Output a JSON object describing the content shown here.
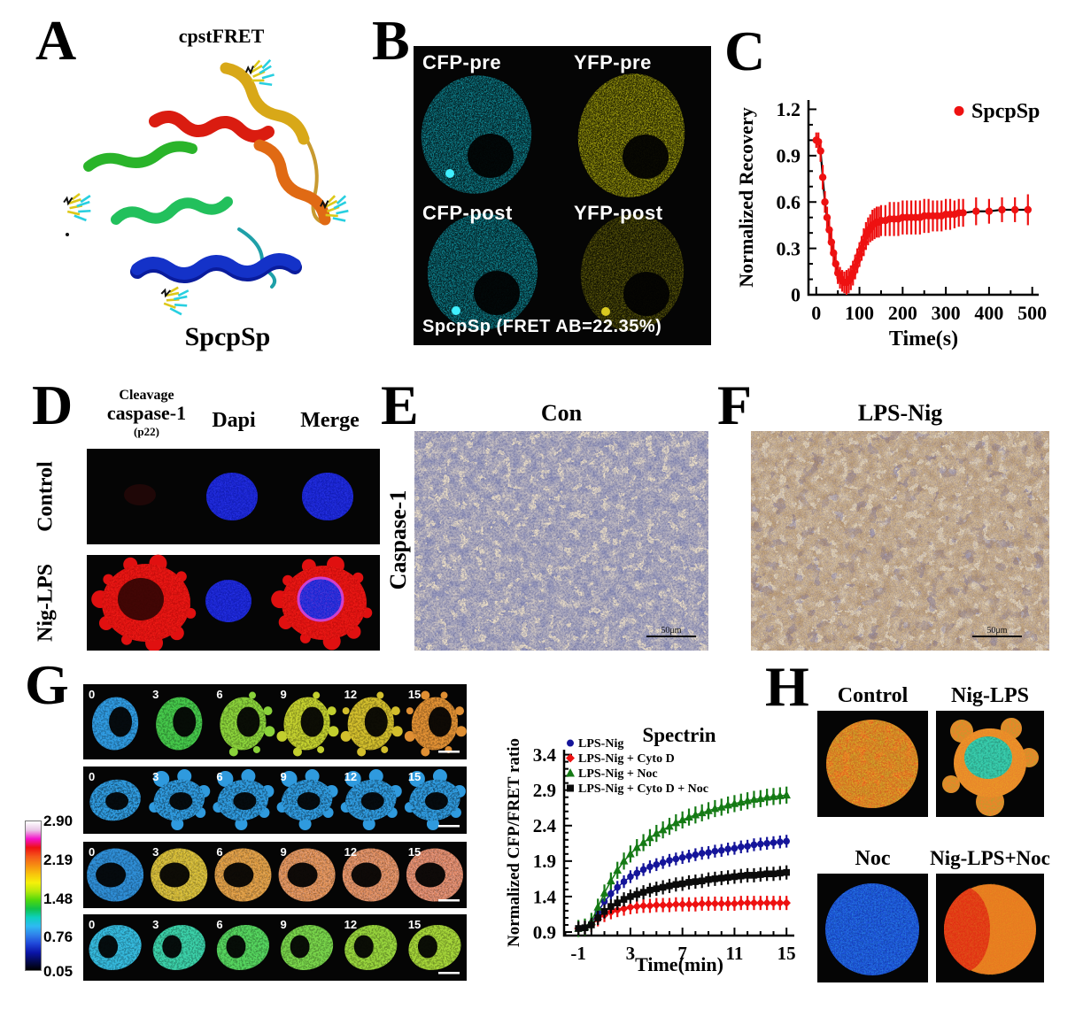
{
  "figure": {
    "panels": {
      "A": {
        "letter": "A",
        "label_top": "cpstFRET",
        "label_bottom": "SpcpSp"
      },
      "B": {
        "letter": "B",
        "quadrant_labels": [
          "CFP-pre",
          "YFP-pre",
          "CFP-post",
          "YFP-post"
        ],
        "caption": "SpcpSp (FRET AB=22.35%)",
        "colors": {
          "background": "#050505",
          "cfp_base": "#063238",
          "cfp_speck": "#17c9da",
          "yfp_base": "#3a3a04",
          "yfp_speck": "#e8e414",
          "yfp_dim_base": "#1d1d03",
          "yfp_dim_speck": "#8a8410"
        }
      },
      "C": {
        "letter": "C"
      },
      "D": {
        "letter": "D",
        "column_headers": {
          "line1": "Cleavage",
          "line2": "caspase-1",
          "line3": "(p22)",
          "col2": "Dapi",
          "col3": "Merge"
        },
        "row_labels": [
          "Control",
          "Nig-LPS"
        ],
        "colors": {
          "caspase_red": "#e01010",
          "caspase_speck": "#ff3020",
          "dapi_blue": "#1822cf",
          "dapi_speck": "#4050ff",
          "merge_ring": "#cf3fcf",
          "background": "#050505"
        }
      },
      "E": {
        "letter": "E",
        "title": "Con",
        "side_label": "Caspase-1",
        "scale_label": "50μm",
        "colors": {
          "base": "#ecdfc9",
          "cells": "#8086bb",
          "nuclei": "#585f9d"
        }
      },
      "F": {
        "letter": "F",
        "title": "LPS-Nig",
        "scale_label": "50μm",
        "colors": {
          "base": "#e5d4b8",
          "cells": "#8a84ae",
          "stain": "#a57b4e"
        }
      },
      "G": {
        "letter": "G",
        "frame_times": [
          "0",
          "3",
          "6",
          "9",
          "12",
          "15"
        ],
        "rows": [
          {
            "name": "LPS-Nig",
            "frame_colors": [
              "#2f9ae0",
              "#45c84a",
              "#8ad23a",
              "#c2cf2e",
              "#d2be2c",
              "#df8f33"
            ],
            "blebs_from": 2,
            "nucleus": "patchy"
          },
          {
            "name": "LPS-Nig + Cyto D",
            "frame_colors": [
              "#2f9ade",
              "#2f9ade",
              "#2f9ade",
              "#2f9ade",
              "#2f9ade",
              "#2f9ade"
            ],
            "blebs_from": 1,
            "nucleus": "patchy"
          },
          {
            "name": "LPS-Nig + Noc",
            "frame_colors": [
              "#2f8fd8",
              "#d6bb2e",
              "#e09a3c",
              "#e08d4c",
              "#df8955",
              "#df8560"
            ],
            "blebs_from": 99,
            "nucleus": "large"
          },
          {
            "name": "LPS-Nig + Cyto D + Noc",
            "frame_colors": [
              "#35b9dc",
              "#3bd0a8",
              "#55d45e",
              "#78d44a",
              "#97d43c",
              "#a4d438"
            ],
            "blebs_from": 99,
            "nucleus": "crescent"
          }
        ],
        "colorbar": {
          "labels": [
            "2.90",
            "2.19",
            "1.48",
            "0.76",
            "0.05"
          ],
          "stops": [
            "#ffffff",
            "#e9c6e6",
            "#f413c9",
            "#ee1111",
            "#f4581a",
            "#f68c12",
            "#f8c20c",
            "#f6f00a",
            "#b5e90b",
            "#4fd80d",
            "#10c24a",
            "#0ecfc0",
            "#2fb9f2",
            "#2f80ea",
            "#1f46d8",
            "#0a14a8",
            "#040a52",
            "#000000"
          ]
        }
      },
      "H": {
        "letter": "H",
        "labels": [
          "Control",
          "Nig-LPS",
          "Noc",
          "Nig-LPS+Noc"
        ],
        "colors": {
          "control_base": "#e07b28",
          "control_speck": "#f0d020",
          "control_speck2": "#e02810",
          "niglps_rim": "#e8862a",
          "niglps_center": "#3cc8a8",
          "noc_base": "#1c50d8",
          "noc_speck": "#30a0e8",
          "nignoc_base": "#e87820",
          "nignoc_crescent": "#dd2a10",
          "nignoc_fringe": "#9cc82c",
          "background": "#050505"
        }
      }
    }
  },
  "chart_data": [
    {
      "panel": "C",
      "type": "scatter-line",
      "title": "",
      "xlabel": "Time(s)",
      "ylabel": "Normalized Recovery",
      "xlim": [
        -18,
        515
      ],
      "ylim": [
        0,
        1.26
      ],
      "xticks": [
        0,
        100,
        200,
        300,
        400,
        500
      ],
      "xtick_labels": [
        "0",
        "100",
        "200",
        "300",
        "400",
        "500"
      ],
      "yticks": [
        0,
        0.3,
        0.6,
        0.9,
        1.2
      ],
      "ytick_labels": [
        "0",
        "0.3",
        "0.6",
        "0.9",
        "1.2"
      ],
      "legend": [
        {
          "label": "SpcpSp",
          "color": "#ee1111",
          "marker": "circle"
        }
      ],
      "series": [
        {
          "name": "SpcpSp",
          "color": "#ee1111",
          "line_color": "#000000",
          "marker": "circle",
          "points": [
            [
              0,
              1.0,
              0.05
            ],
            [
              5,
              0.99,
              0.06
            ],
            [
              10,
              0.93,
              0.07
            ],
            [
              15,
              0.76,
              0.08
            ],
            [
              20,
              0.6,
              0.07
            ],
            [
              25,
              0.5,
              0.07
            ],
            [
              30,
              0.42,
              0.07
            ],
            [
              35,
              0.34,
              0.07
            ],
            [
              40,
              0.27,
              0.07
            ],
            [
              45,
              0.2,
              0.07
            ],
            [
              50,
              0.14,
              0.07
            ],
            [
              55,
              0.11,
              0.07
            ],
            [
              60,
              0.09,
              0.07
            ],
            [
              65,
              0.08,
              0.07
            ],
            [
              70,
              0.08,
              0.08
            ],
            [
              75,
              0.09,
              0.08
            ],
            [
              80,
              0.11,
              0.08
            ],
            [
              85,
              0.14,
              0.08
            ],
            [
              90,
              0.18,
              0.08
            ],
            [
              95,
              0.22,
              0.08
            ],
            [
              100,
              0.26,
              0.08
            ],
            [
              105,
              0.3,
              0.08
            ],
            [
              110,
              0.34,
              0.09
            ],
            [
              115,
              0.38,
              0.09
            ],
            [
              120,
              0.41,
              0.09
            ],
            [
              125,
              0.43,
              0.09
            ],
            [
              130,
              0.45,
              0.1
            ],
            [
              135,
              0.46,
              0.1
            ],
            [
              140,
              0.47,
              0.1
            ],
            [
              145,
              0.47,
              0.1
            ],
            [
              150,
              0.48,
              0.1
            ],
            [
              160,
              0.48,
              0.1
            ],
            [
              170,
              0.49,
              0.11
            ],
            [
              180,
              0.49,
              0.11
            ],
            [
              190,
              0.49,
              0.11
            ],
            [
              200,
              0.5,
              0.11
            ],
            [
              210,
              0.5,
              0.11
            ],
            [
              220,
              0.5,
              0.11
            ],
            [
              230,
              0.5,
              0.11
            ],
            [
              240,
              0.5,
              0.11
            ],
            [
              250,
              0.51,
              0.11
            ],
            [
              260,
              0.51,
              0.11
            ],
            [
              270,
              0.51,
              0.1
            ],
            [
              280,
              0.51,
              0.1
            ],
            [
              290,
              0.51,
              0.1
            ],
            [
              300,
              0.52,
              0.1
            ],
            [
              310,
              0.52,
              0.1
            ],
            [
              320,
              0.52,
              0.09
            ],
            [
              330,
              0.53,
              0.09
            ],
            [
              340,
              0.53,
              0.09
            ],
            [
              370,
              0.54,
              0.09
            ],
            [
              400,
              0.54,
              0.08
            ],
            [
              430,
              0.55,
              0.08
            ],
            [
              460,
              0.55,
              0.08
            ],
            [
              490,
              0.55,
              0.1
            ]
          ]
        }
      ]
    },
    {
      "panel": "G",
      "type": "scatter-line",
      "title": "Spectrin",
      "xlabel": "Time(min)",
      "ylabel": "Normalized CFP/FRET ratio",
      "xlim": [
        -2.1,
        15.6
      ],
      "ylim": [
        0.85,
        3.47
      ],
      "xticks": [
        -1,
        3,
        7,
        11,
        15
      ],
      "xtick_labels": [
        "-1",
        "3",
        "7",
        "11",
        "15"
      ],
      "yticks": [
        0.9,
        1.4,
        1.9,
        2.4,
        2.9,
        3.4
      ],
      "ytick_labels": [
        "0.9",
        "1.4",
        "1.9",
        "2.4",
        "2.9",
        "3.4"
      ],
      "x": [
        -1,
        -0.5,
        0,
        0.5,
        1,
        1.5,
        2,
        2.5,
        3,
        3.5,
        4,
        4.5,
        5,
        5.5,
        6,
        6.5,
        7,
        7.5,
        8,
        8.5,
        9,
        9.5,
        10,
        10.5,
        11,
        11.5,
        12,
        12.5,
        13,
        13.5,
        14,
        14.5,
        15
      ],
      "series": [
        {
          "name": "LPS-Nig",
          "color": "#15159a",
          "marker": "circle",
          "err": 0.09,
          "y": [
            0.95,
            0.96,
            1.02,
            1.18,
            1.33,
            1.44,
            1.53,
            1.61,
            1.68,
            1.73,
            1.78,
            1.82,
            1.85,
            1.88,
            1.91,
            1.93,
            1.95,
            1.97,
            1.99,
            2.01,
            2.02,
            2.04,
            2.05,
            2.07,
            2.08,
            2.1,
            2.11,
            2.13,
            2.14,
            2.15,
            2.16,
            2.17,
            2.18
          ]
        },
        {
          "name": "LPS-Nig + Cyto D",
          "color": "#ee1111",
          "marker": "diamond",
          "err": 0.1,
          "y": [
            0.95,
            0.96,
            1.0,
            1.08,
            1.14,
            1.18,
            1.21,
            1.23,
            1.25,
            1.26,
            1.27,
            1.27,
            1.28,
            1.28,
            1.28,
            1.29,
            1.29,
            1.29,
            1.29,
            1.3,
            1.3,
            1.3,
            1.3,
            1.3,
            1.3,
            1.31,
            1.31,
            1.31,
            1.31,
            1.31,
            1.31,
            1.31,
            1.31
          ]
        },
        {
          "name": "LPS-Nig + Noc",
          "color": "#157a15",
          "marker": "triangle",
          "err": 0.12,
          "y": [
            0.95,
            0.97,
            1.05,
            1.25,
            1.45,
            1.62,
            1.77,
            1.9,
            2.0,
            2.09,
            2.16,
            2.23,
            2.29,
            2.34,
            2.39,
            2.44,
            2.48,
            2.52,
            2.55,
            2.58,
            2.61,
            2.64,
            2.66,
            2.69,
            2.71,
            2.73,
            2.75,
            2.77,
            2.78,
            2.8,
            2.81,
            2.82,
            2.83
          ]
        },
        {
          "name": "LPS-Nig + Cyto D + Noc",
          "color": "#0a0a0a",
          "marker": "square",
          "err": 0.1,
          "y": [
            0.95,
            0.96,
            1.0,
            1.1,
            1.19,
            1.26,
            1.31,
            1.36,
            1.4,
            1.43,
            1.46,
            1.49,
            1.51,
            1.53,
            1.55,
            1.57,
            1.58,
            1.6,
            1.61,
            1.62,
            1.64,
            1.65,
            1.66,
            1.67,
            1.68,
            1.69,
            1.7,
            1.7,
            1.71,
            1.72,
            1.72,
            1.73,
            1.74
          ]
        }
      ]
    }
  ]
}
